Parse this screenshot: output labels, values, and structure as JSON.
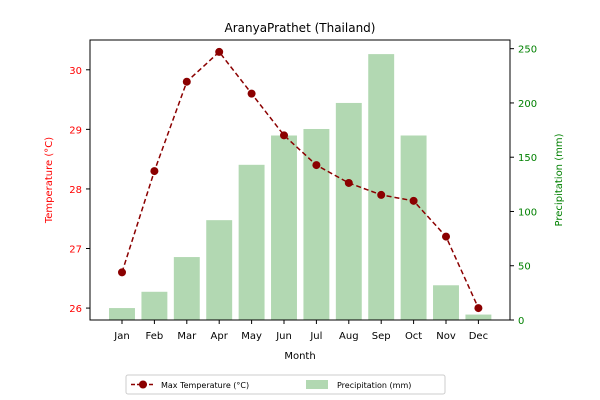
{
  "chart_data": {
    "type": "bar",
    "title": "AranyaPrathet (Thailand)",
    "xlabel": "Month",
    "categories": [
      "Jan",
      "Feb",
      "Mar",
      "Apr",
      "May",
      "Jun",
      "Jul",
      "Aug",
      "Sep",
      "Oct",
      "Nov",
      "Dec"
    ],
    "left_axis": {
      "label": "Temperature (°C)",
      "ylim": [
        25.8,
        30.5
      ],
      "ticks": [
        26,
        27,
        28,
        29,
        30
      ],
      "color": "#ff0000"
    },
    "right_axis": {
      "label": "Precipitation (mm)",
      "ylim": [
        0,
        258
      ],
      "ticks": [
        0,
        50,
        100,
        150,
        200,
        250
      ],
      "color": "#008000"
    },
    "series": [
      {
        "name": "Max Temperature (°C)",
        "kind": "line",
        "axis": "left",
        "color": "#8b0000",
        "values": [
          26.6,
          28.3,
          29.8,
          30.3,
          29.6,
          28.9,
          28.4,
          28.1,
          27.9,
          27.8,
          27.2,
          26.0
        ]
      },
      {
        "name": "Precipitation (mm)",
        "kind": "bar",
        "axis": "right",
        "color": "#b2d8b2",
        "values": [
          11,
          26,
          58,
          92,
          143,
          170,
          176,
          200,
          245,
          170,
          32,
          5
        ]
      }
    ],
    "legend": "bottom-center",
    "grid": false
  }
}
